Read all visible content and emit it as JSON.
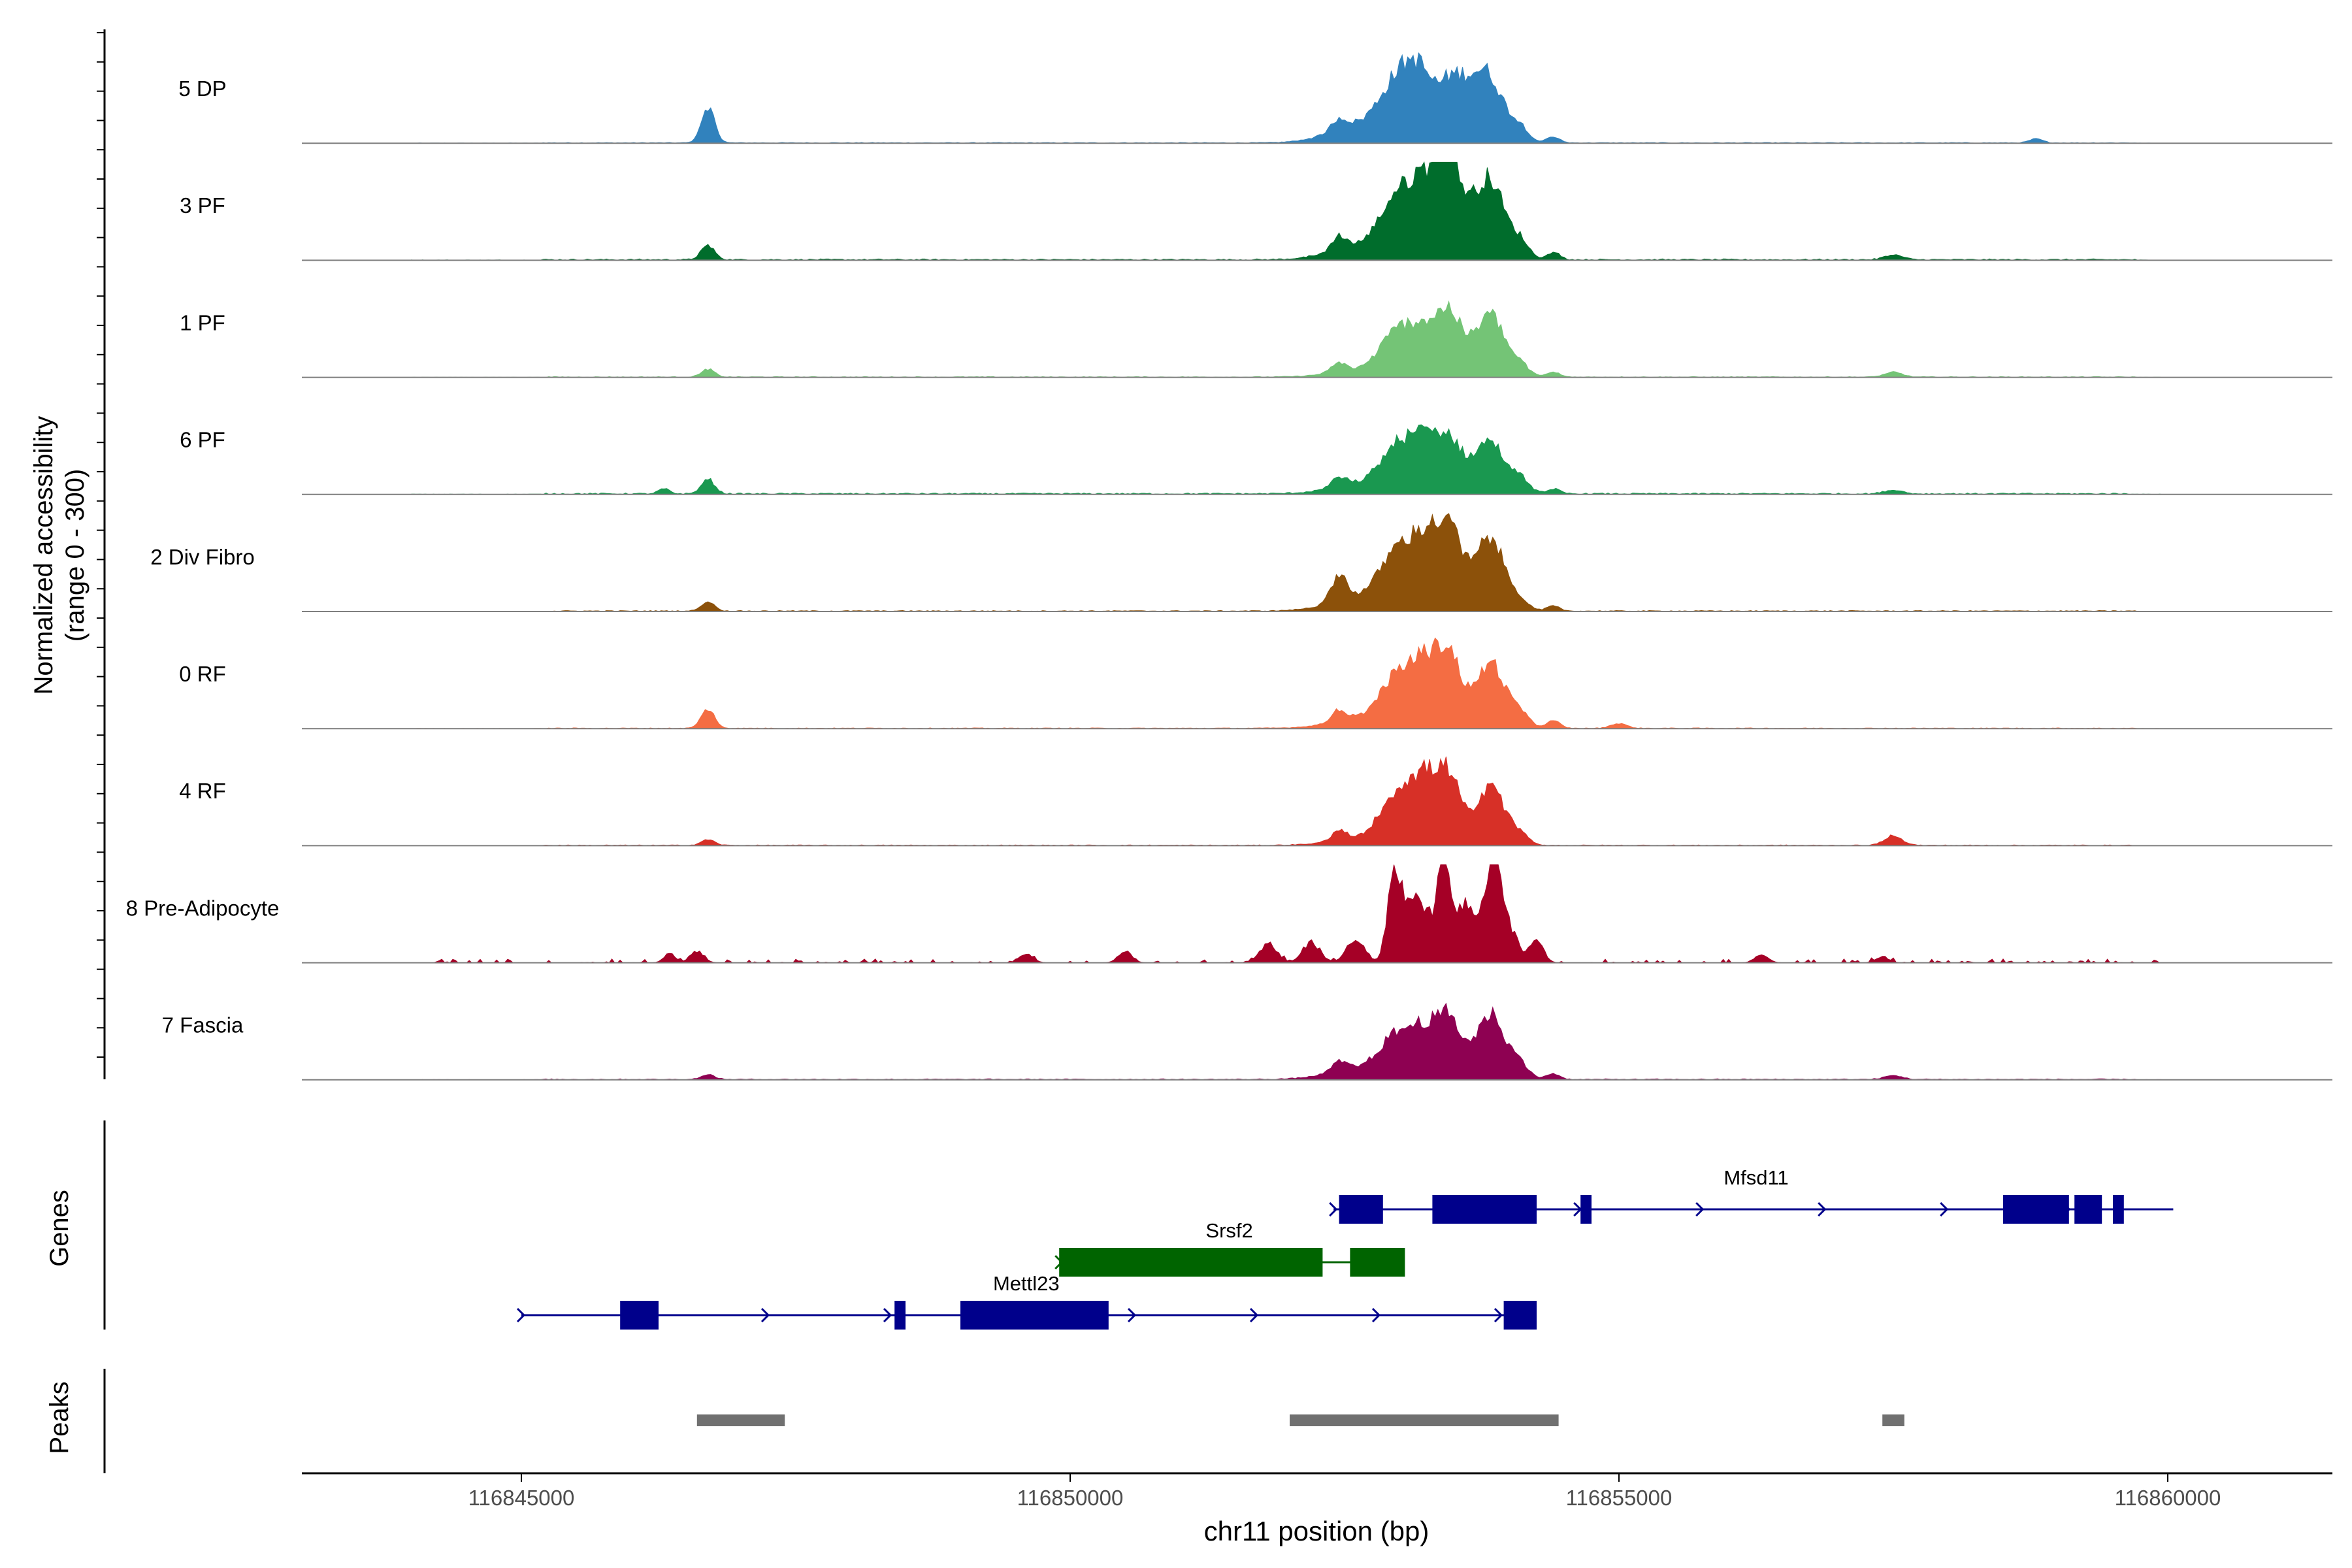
{
  "chart_data": {
    "type": "area",
    "title": "",
    "xlabel": "chr11 position (bp)",
    "ylabel_line1": "Normalized accessibility",
    "ylabel_line2": "(range 0 - 300)",
    "xlim": [
      116843000,
      116861500
    ],
    "ylim": [
      0,
      300
    ],
    "x_ticks": [
      116845000,
      116850000,
      116855000,
      116860000
    ],
    "x_tick_labels": [
      "116845000",
      "116850000",
      "116855000",
      "116860000"
    ],
    "series": [
      {
        "name": "5 DP",
        "color": "#3182bd",
        "base_noise": 0.008,
        "sparse": false,
        "peaks": [
          [
            116846700,
            60,
            0.38
          ],
          [
            116852450,
            70,
            0.12
          ],
          [
            116852700,
            300,
            0.2
          ],
          [
            116853000,
            160,
            0.55
          ],
          [
            116853200,
            120,
            0.48
          ],
          [
            116853450,
            110,
            0.35
          ],
          [
            116853650,
            170,
            0.55
          ],
          [
            116853850,
            130,
            0.4
          ],
          [
            116854100,
            80,
            0.14
          ],
          [
            116854400,
            60,
            0.06
          ],
          [
            116858800,
            60,
            0.04
          ]
        ]
      },
      {
        "name": "3 PF",
        "color": "#006d2c",
        "base_noise": 0.014,
        "sparse": false,
        "peaks": [
          [
            116846700,
            60,
            0.15
          ],
          [
            116852450,
            70,
            0.15
          ],
          [
            116852700,
            300,
            0.14
          ],
          [
            116853000,
            160,
            0.6
          ],
          [
            116853250,
            120,
            0.65
          ],
          [
            116853450,
            100,
            0.72
          ],
          [
            116853650,
            170,
            0.45
          ],
          [
            116853850,
            120,
            0.6
          ],
          [
            116854100,
            80,
            0.18
          ],
          [
            116854400,
            60,
            0.08
          ],
          [
            116857500,
            80,
            0.05
          ]
        ]
      },
      {
        "name": "1 PF",
        "color": "#74c476",
        "base_noise": 0.008,
        "sparse": false,
        "peaks": [
          [
            116846700,
            60,
            0.08
          ],
          [
            116852450,
            70,
            0.1
          ],
          [
            116852700,
            300,
            0.07
          ],
          [
            116853000,
            160,
            0.45
          ],
          [
            116853250,
            120,
            0.38
          ],
          [
            116853450,
            100,
            0.5
          ],
          [
            116853650,
            170,
            0.25
          ],
          [
            116853850,
            120,
            0.52
          ],
          [
            116854100,
            80,
            0.12
          ],
          [
            116854400,
            60,
            0.05
          ],
          [
            116857500,
            80,
            0.05
          ]
        ]
      },
      {
        "name": "6 PF",
        "color": "#1a9850",
        "base_noise": 0.015,
        "sparse": false,
        "peaks": [
          [
            116846300,
            50,
            0.05
          ],
          [
            116846700,
            60,
            0.15
          ],
          [
            116852450,
            70,
            0.1
          ],
          [
            116852700,
            300,
            0.1
          ],
          [
            116853000,
            160,
            0.45
          ],
          [
            116853250,
            120,
            0.45
          ],
          [
            116853450,
            100,
            0.38
          ],
          [
            116853650,
            170,
            0.25
          ],
          [
            116853850,
            120,
            0.42
          ],
          [
            116854100,
            80,
            0.15
          ],
          [
            116854400,
            60,
            0.05
          ],
          [
            116857500,
            80,
            0.04
          ]
        ]
      },
      {
        "name": "2 Div Fibro",
        "color": "#8c510a",
        "base_noise": 0.01,
        "sparse": false,
        "peaks": [
          [
            116846700,
            60,
            0.1
          ],
          [
            116852450,
            70,
            0.28
          ],
          [
            116852700,
            300,
            0.15
          ],
          [
            116853000,
            160,
            0.55
          ],
          [
            116853250,
            120,
            0.6
          ],
          [
            116853450,
            100,
            0.65
          ],
          [
            116853650,
            170,
            0.3
          ],
          [
            116853850,
            120,
            0.6
          ],
          [
            116854100,
            80,
            0.1
          ],
          [
            116854400,
            60,
            0.05
          ]
        ]
      },
      {
        "name": "0 RF",
        "color": "#f46d43",
        "base_noise": 0.008,
        "sparse": false,
        "peaks": [
          [
            116846700,
            60,
            0.2
          ],
          [
            116852450,
            70,
            0.12
          ],
          [
            116852700,
            300,
            0.1
          ],
          [
            116853000,
            160,
            0.5
          ],
          [
            116853250,
            120,
            0.55
          ],
          [
            116853450,
            100,
            0.62
          ],
          [
            116853650,
            170,
            0.2
          ],
          [
            116853850,
            120,
            0.58
          ],
          [
            116854100,
            80,
            0.15
          ],
          [
            116854400,
            60,
            0.08
          ],
          [
            116855000,
            70,
            0.05
          ]
        ]
      },
      {
        "name": "4 RF",
        "color": "#d73027",
        "base_noise": 0.008,
        "sparse": false,
        "peaks": [
          [
            116846700,
            60,
            0.06
          ],
          [
            116852450,
            70,
            0.1
          ],
          [
            116852700,
            300,
            0.07
          ],
          [
            116853000,
            160,
            0.52
          ],
          [
            116853250,
            120,
            0.55
          ],
          [
            116853450,
            100,
            0.58
          ],
          [
            116853650,
            170,
            0.15
          ],
          [
            116853850,
            120,
            0.52
          ],
          [
            116854100,
            80,
            0.1
          ],
          [
            116857500,
            80,
            0.1
          ]
        ]
      },
      {
        "name": "8 Pre-Adipocyte",
        "color": "#a50026",
        "base_noise": 0.03,
        "sparse": true,
        "peaks": [
          [
            116846350,
            50,
            0.1
          ],
          [
            116846600,
            60,
            0.12
          ],
          [
            116849600,
            60,
            0.1
          ],
          [
            116850500,
            60,
            0.12
          ],
          [
            116851800,
            80,
            0.18
          ],
          [
            116852200,
            80,
            0.2
          ],
          [
            116852600,
            80,
            0.25
          ],
          [
            116852950,
            60,
            0.9
          ],
          [
            116853100,
            80,
            0.5
          ],
          [
            116853250,
            100,
            0.45
          ],
          [
            116853400,
            50,
            0.85
          ],
          [
            116853550,
            100,
            0.45
          ],
          [
            116853700,
            120,
            0.3
          ],
          [
            116853850,
            60,
            0.75
          ],
          [
            116853950,
            100,
            0.45
          ],
          [
            116854250,
            60,
            0.25
          ],
          [
            116856300,
            60,
            0.08
          ],
          [
            116857400,
            60,
            0.06
          ]
        ]
      },
      {
        "name": "7 Fascia",
        "color": "#8e0152",
        "base_noise": 0.01,
        "sparse": false,
        "peaks": [
          [
            116846700,
            60,
            0.05
          ],
          [
            116852450,
            70,
            0.1
          ],
          [
            116852700,
            300,
            0.12
          ],
          [
            116853000,
            160,
            0.4
          ],
          [
            116853250,
            120,
            0.4
          ],
          [
            116853450,
            100,
            0.48
          ],
          [
            116853650,
            170,
            0.2
          ],
          [
            116853850,
            120,
            0.58
          ],
          [
            116854100,
            80,
            0.15
          ],
          [
            116854400,
            60,
            0.06
          ],
          [
            116857500,
            80,
            0.04
          ]
        ]
      }
    ],
    "genes_label": "Genes",
    "peaks_label": "Peaks",
    "genes": [
      {
        "name": "Mfsd11",
        "color": "#00008b",
        "start": 116852400,
        "end": 116860050,
        "row": 0,
        "label_at": 116856250,
        "exons": [
          [
            116852450,
            116852850
          ],
          [
            116853300,
            116854250
          ],
          [
            116854650,
            116854750
          ],
          [
            116858500,
            116859100
          ],
          [
            116859150,
            116859400
          ],
          [
            116859500,
            116859600
          ]
        ]
      },
      {
        "name": "Srsf2",
        "color": "#006400",
        "start": 116849900,
        "end": 116853000,
        "row": 1,
        "label_at": 116851450,
        "exons": [
          [
            116849900,
            116852300
          ],
          [
            116852550,
            116853050
          ]
        ]
      },
      {
        "name": "Mettl23",
        "color": "#00008b",
        "start": 116845000,
        "end": 116854250,
        "row": 2,
        "label_at": 116849600,
        "exons": [
          [
            116845900,
            116846250
          ],
          [
            116848400,
            116848500
          ],
          [
            116849000,
            116850350
          ],
          [
            116853950,
            116854250
          ]
        ]
      }
    ],
    "peaks": [
      [
        116846600,
        116847400
      ],
      [
        116852000,
        116854450
      ],
      [
        116857400,
        116857600
      ]
    ],
    "peak_color": "#707070"
  }
}
